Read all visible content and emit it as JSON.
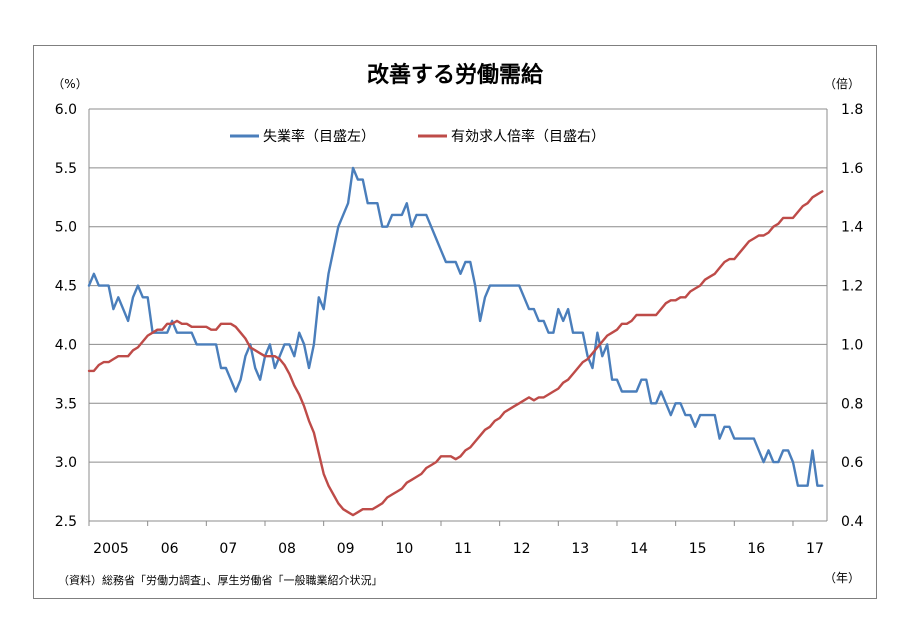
{
  "chart_data": {
    "type": "line",
    "title": "改善する労働需給",
    "left_unit": "（%）",
    "right_unit": "（倍）",
    "x_unit": "（年）",
    "source": "（資料）総務省「労働力調査」、厚生労働省「一般職業紹介状況」",
    "x_tick_labels": [
      "2005",
      "06",
      "07",
      "08",
      "09",
      "10",
      "11",
      "12",
      "13",
      "14",
      "15",
      "16",
      "17"
    ],
    "x_range": [
      2005,
      2017.58
    ],
    "y_left": {
      "ylim": [
        2.5,
        6.0
      ],
      "ticks": [
        "2.5",
        "3.0",
        "3.5",
        "4.0",
        "4.5",
        "5.0",
        "5.5",
        "6.0"
      ]
    },
    "y_right": {
      "ylim": [
        0.4,
        1.8
      ],
      "ticks": [
        "0.4",
        "0.6",
        "0.8",
        "1.0",
        "1.2",
        "1.4",
        "1.6",
        "1.8"
      ]
    },
    "grid": true,
    "legend_position": "top-center",
    "series": [
      {
        "name": "失業率（目盛左）",
        "axis": "left",
        "color": "#4a7ebb",
        "values": [
          4.5,
          4.6,
          4.5,
          4.5,
          4.5,
          4.3,
          4.4,
          4.3,
          4.2,
          4.4,
          4.5,
          4.4,
          4.4,
          4.1,
          4.1,
          4.1,
          4.1,
          4.2,
          4.1,
          4.1,
          4.1,
          4.1,
          4.0,
          4.0,
          4.0,
          4.0,
          4.0,
          3.8,
          3.8,
          3.7,
          3.6,
          3.7,
          3.9,
          4.0,
          3.8,
          3.7,
          3.9,
          4.0,
          3.8,
          3.9,
          4.0,
          4.0,
          3.9,
          4.1,
          4.0,
          3.8,
          4.0,
          4.4,
          4.3,
          4.6,
          4.8,
          5.0,
          5.1,
          5.2,
          5.5,
          5.4,
          5.4,
          5.2,
          5.2,
          5.2,
          5.0,
          5.0,
          5.1,
          5.1,
          5.1,
          5.2,
          5.0,
          5.1,
          5.1,
          5.1,
          5.0,
          4.9,
          4.8,
          4.7,
          4.7,
          4.7,
          4.6,
          4.7,
          4.7,
          4.5,
          4.2,
          4.4,
          4.5,
          4.5,
          4.5,
          4.5,
          4.5,
          4.5,
          4.5,
          4.4,
          4.3,
          4.3,
          4.2,
          4.2,
          4.1,
          4.1,
          4.3,
          4.2,
          4.3,
          4.1,
          4.1,
          4.1,
          3.9,
          3.8,
          4.1,
          3.9,
          4.0,
          3.7,
          3.7,
          3.6,
          3.6,
          3.6,
          3.6,
          3.7,
          3.7,
          3.5,
          3.5,
          3.6,
          3.5,
          3.4,
          3.5,
          3.5,
          3.4,
          3.4,
          3.3,
          3.4,
          3.4,
          3.4,
          3.4,
          3.2,
          3.3,
          3.3,
          3.2,
          3.2,
          3.2,
          3.2,
          3.2,
          3.1,
          3.0,
          3.1,
          3.0,
          3.0,
          3.1,
          3.1,
          3.0,
          2.8,
          2.8,
          2.8,
          3.1,
          2.8,
          2.8
        ]
      },
      {
        "name": "有効求人倍率（目盛右）",
        "axis": "right",
        "color": "#be4b48",
        "values": [
          0.91,
          0.91,
          0.93,
          0.94,
          0.94,
          0.95,
          0.96,
          0.96,
          0.96,
          0.98,
          0.99,
          1.01,
          1.03,
          1.04,
          1.05,
          1.05,
          1.07,
          1.07,
          1.08,
          1.07,
          1.07,
          1.06,
          1.06,
          1.06,
          1.06,
          1.05,
          1.05,
          1.07,
          1.07,
          1.07,
          1.06,
          1.04,
          1.02,
          0.99,
          0.98,
          0.97,
          0.96,
          0.96,
          0.96,
          0.95,
          0.93,
          0.9,
          0.86,
          0.83,
          0.79,
          0.74,
          0.7,
          0.63,
          0.56,
          0.52,
          0.49,
          0.46,
          0.44,
          0.43,
          0.42,
          0.43,
          0.44,
          0.44,
          0.44,
          0.45,
          0.46,
          0.48,
          0.49,
          0.5,
          0.51,
          0.53,
          0.54,
          0.55,
          0.56,
          0.58,
          0.59,
          0.6,
          0.62,
          0.62,
          0.62,
          0.61,
          0.62,
          0.64,
          0.65,
          0.67,
          0.69,
          0.71,
          0.72,
          0.74,
          0.75,
          0.77,
          0.78,
          0.79,
          0.8,
          0.81,
          0.82,
          0.81,
          0.82,
          0.82,
          0.83,
          0.84,
          0.85,
          0.87,
          0.88,
          0.9,
          0.92,
          0.94,
          0.95,
          0.97,
          0.99,
          1.01,
          1.03,
          1.04,
          1.05,
          1.07,
          1.07,
          1.08,
          1.1,
          1.1,
          1.1,
          1.1,
          1.1,
          1.12,
          1.14,
          1.15,
          1.15,
          1.16,
          1.16,
          1.18,
          1.19,
          1.2,
          1.22,
          1.23,
          1.24,
          1.26,
          1.28,
          1.29,
          1.29,
          1.31,
          1.33,
          1.35,
          1.36,
          1.37,
          1.37,
          1.38,
          1.4,
          1.41,
          1.43,
          1.43,
          1.43,
          1.45,
          1.47,
          1.48,
          1.5,
          1.51,
          1.52
        ]
      }
    ]
  }
}
